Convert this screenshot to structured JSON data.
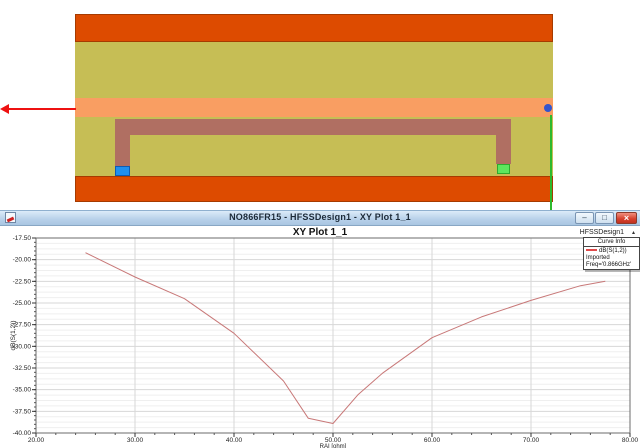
{
  "colors": {
    "band_orange": "#dd4b00",
    "band_olive": "#c6be55",
    "band_salmon": "#f99e62",
    "trace_brown": "#b06f62",
    "pad_blue": "#1f8fee",
    "pad_green": "#5de65d",
    "port_dot_blue": "#3355cc",
    "port_line_green": "#2db92d",
    "arrow_red": "#ee1111",
    "curve_red": "#c87878",
    "legend_swatch_red": "#e04a4a",
    "titlebar_blue": "#b7d0e9"
  },
  "model": {
    "layers": [
      {
        "name": "top-conductor",
        "color": "#dd4b00"
      },
      {
        "name": "upper-substrate",
        "color": "#c6be55"
      },
      {
        "name": "feed-strip",
        "color": "#f99e62"
      },
      {
        "name": "lower-substrate",
        "color": "#c6be55"
      },
      {
        "name": "bottom-conductor",
        "color": "#dd4b00"
      }
    ]
  },
  "window": {
    "title": "NO866FR15 - HFSSDesign1 - XY Plot 1_1",
    "controls": {
      "minimize": "–",
      "maximize": "□",
      "close": "×"
    }
  },
  "plot": {
    "title": "XY Plot 1_1",
    "context_label": "HFSSDesign1",
    "collapse_arrow": "▴",
    "legend": {
      "header": "Curve Info",
      "series": [
        {
          "label": "dB(S(1,2))",
          "note_setup": "Imported",
          "note_freq": "Freq='0.866GHz'",
          "color": "#e04a4a"
        }
      ]
    }
  },
  "chart_data": {
    "type": "line",
    "title": "XY Plot 1_1",
    "xlabel": "RAI [ohm]",
    "ylabel": "dB(S(1,2))",
    "xlim": [
      20,
      80
    ],
    "ylim": [
      -40,
      -17.5
    ],
    "x_ticks": [
      20,
      30,
      40,
      50,
      60,
      70,
      80
    ],
    "x_tick_labels": [
      "20.00",
      "30.00",
      "40.00",
      "50.00",
      "60.00",
      "70.00",
      "80.00"
    ],
    "y_ticks": [
      -17.5,
      -20,
      -22.5,
      -25,
      -27.5,
      -30,
      -32.5,
      -35,
      -37.5,
      -40
    ],
    "y_tick_labels": [
      "-17.50",
      "-20.00",
      "-22.50",
      "-25.00",
      "-27.50",
      "-30.00",
      "-32.50",
      "-35.00",
      "-37.50",
      "-40.00"
    ],
    "grid": true,
    "legend_position": "top-right",
    "series": [
      {
        "name": "dB(S(1,2))",
        "color": "#c87878",
        "x": [
          25,
          30,
          35,
          40,
          45,
          47.5,
          50,
          52.5,
          55,
          60,
          65,
          70,
          75,
          77.5
        ],
        "y": [
          -19.2,
          -22.0,
          -24.5,
          -28.5,
          -34.0,
          -38.3,
          -38.9,
          -35.6,
          -33.1,
          -29.0,
          -26.6,
          -24.7,
          -23.0,
          -22.5
        ]
      }
    ]
  }
}
